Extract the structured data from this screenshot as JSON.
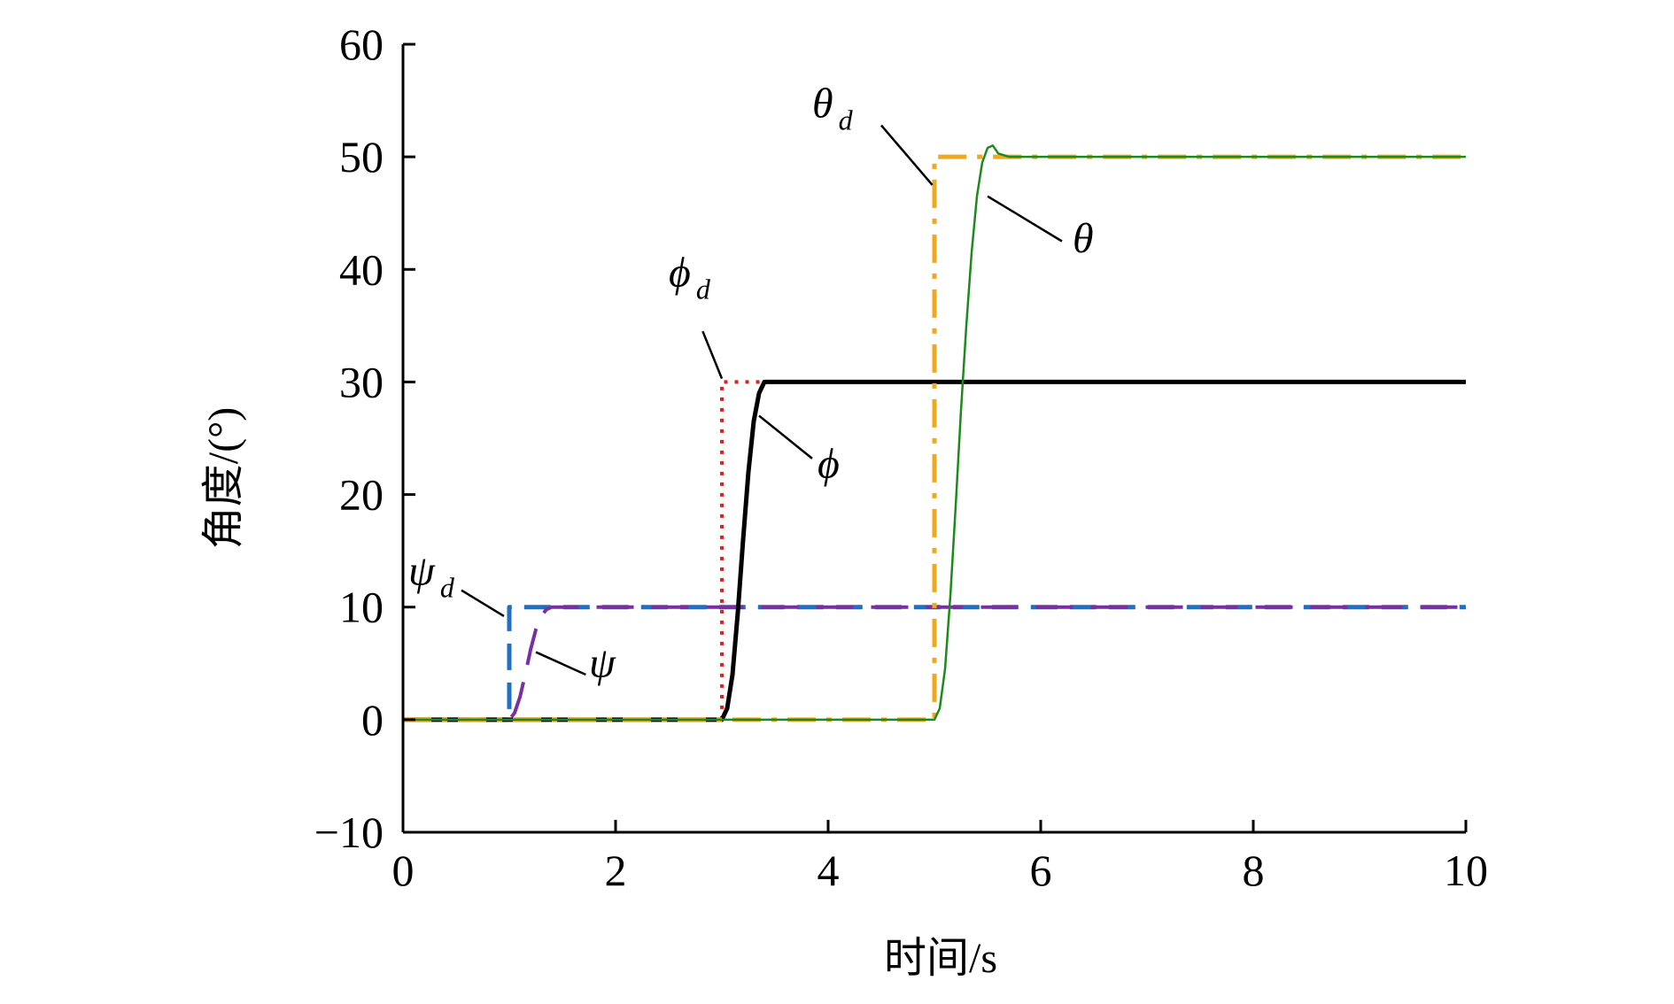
{
  "chart_data": {
    "type": "line",
    "xlabel": "时间/s",
    "ylabel": "角度/(°)",
    "xlim": [
      0,
      10
    ],
    "ylim": [
      -10,
      60
    ],
    "xticks": [
      0,
      2,
      4,
      6,
      8,
      10
    ],
    "yticks": [
      -10,
      0,
      10,
      20,
      30,
      40,
      50,
      60
    ],
    "ytick_labels": [
      "−10",
      "0",
      "10",
      "20",
      "30",
      "40",
      "50",
      "60"
    ],
    "grid": false,
    "legend": "none",
    "series": [
      {
        "key": "psi_d",
        "color": "#1f6fc4",
        "style": "dashed",
        "x": [
          0,
          1.0,
          1.0,
          10
        ],
        "y": [
          0,
          0,
          10,
          10
        ]
      },
      {
        "key": "psi",
        "color": "#7a2fa0",
        "style": "dashed-long",
        "x": [
          0,
          1.0,
          1.05,
          1.1,
          1.15,
          1.2,
          1.25,
          1.3,
          1.35,
          1.4,
          1.5,
          10
        ],
        "y": [
          0,
          0,
          0.6,
          2.0,
          4.0,
          6.2,
          8.0,
          9.2,
          9.8,
          10.0,
          10.0,
          10
        ]
      },
      {
        "key": "phi_d",
        "color": "#e02020",
        "style": "dotted",
        "x": [
          0,
          3.0,
          3.0,
          10
        ],
        "y": [
          0,
          0,
          30,
          30
        ]
      },
      {
        "key": "phi",
        "color": "#000000",
        "style": "solid",
        "x": [
          0,
          3.0,
          3.05,
          3.1,
          3.15,
          3.2,
          3.25,
          3.3,
          3.35,
          3.4,
          3.45,
          3.5,
          10
        ],
        "y": [
          0,
          0,
          1.0,
          4.0,
          9.5,
          16.0,
          22.0,
          26.5,
          29.0,
          30.0,
          30.0,
          30.0,
          30
        ]
      },
      {
        "key": "theta_d",
        "color": "#f0a81c",
        "style": "dashdot",
        "x": [
          0,
          5.0,
          5.0,
          10
        ],
        "y": [
          0,
          0,
          50,
          50
        ]
      },
      {
        "key": "theta",
        "color": "#1e8a1e",
        "style": "solid-thin",
        "x": [
          0,
          5.0,
          5.05,
          5.1,
          5.15,
          5.2,
          5.25,
          5.3,
          5.35,
          5.4,
          5.45,
          5.5,
          5.55,
          5.6,
          5.7,
          10
        ],
        "y": [
          0,
          0,
          1.0,
          4.5,
          11.0,
          19.0,
          27.5,
          35.0,
          41.5,
          46.5,
          49.5,
          50.8,
          51.0,
          50.3,
          50.0,
          50
        ]
      }
    ],
    "annotations": [
      {
        "main": "ψ",
        "sub": "d",
        "tx": 0.05,
        "ty": 12.0,
        "lx1": 0.55,
        "ly1": 11.5,
        "lx2": 0.95,
        "ly2": 9.2
      },
      {
        "main": "ψ",
        "sub": "",
        "tx": 1.75,
        "ty": 3.8,
        "lx1": 1.25,
        "ly1": 6.0,
        "lx2": 1.72,
        "ly2": 4.0
      },
      {
        "main": "ϕ",
        "sub": "d",
        "tx": 2.5,
        "ty": 38.5,
        "lx1": 2.82,
        "ly1": 34.5,
        "lx2": 3.0,
        "ly2": 30.3
      },
      {
        "main": "ϕ",
        "sub": "",
        "tx": 3.9,
        "ty": 21.5,
        "lx1": 3.35,
        "ly1": 27.0,
        "lx2": 3.85,
        "ly2": 23.2
      },
      {
        "main": "θ",
        "sub": "d",
        "tx": 3.85,
        "ty": 53.5,
        "lx1": 4.5,
        "ly1": 52.8,
        "lx2": 4.98,
        "ly2": 47.5
      },
      {
        "main": "θ",
        "sub": "",
        "tx": 6.3,
        "ty": 41.5,
        "lx1": 5.5,
        "ly1": 46.5,
        "lx2": 6.2,
        "ly2": 42.5
      }
    ]
  }
}
